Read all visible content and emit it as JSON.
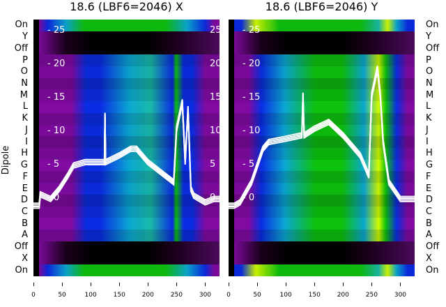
{
  "chart_data": [
    {
      "type": "heatmap",
      "title": "18.6 (LBF6=2046) X",
      "ylabel": "Dipole",
      "row_labels": [
        "On",
        "Y",
        "Off",
        "P",
        "O",
        "N",
        "M",
        "L",
        "K",
        "J",
        "I",
        "H",
        "G",
        "F",
        "E",
        "D",
        "C",
        "B",
        "A",
        "Off",
        "X",
        "On"
      ],
      "xticks": [
        0,
        50,
        100,
        150,
        200,
        250,
        300
      ],
      "xlim": [
        0,
        325
      ],
      "inner_yticks": [
        0,
        5,
        10,
        15,
        20,
        25
      ],
      "line": {
        "x": [
          0,
          10,
          12,
          30,
          45,
          60,
          70,
          90,
          120,
          124,
          125,
          126,
          150,
          170,
          180,
          200,
          230,
          245,
          250,
          255,
          260,
          265,
          270,
          275,
          280,
          300,
          315,
          325
        ],
        "y": [
          -1.5,
          -1.5,
          0.2,
          -0.5,
          1,
          3,
          4.5,
          5,
          5,
          5,
          12,
          5,
          6,
          7,
          7,
          5,
          3,
          2,
          10,
          12,
          14,
          5,
          13,
          1,
          0,
          -1,
          -0.5,
          -0.5
        ]
      }
    },
    {
      "type": "heatmap",
      "title": "18.6 (LBF6=2046) Y",
      "ylabel": "",
      "row_labels": [
        "On",
        "Y",
        "Off",
        "P",
        "O",
        "N",
        "M",
        "L",
        "K",
        "J",
        "I",
        "H",
        "G",
        "F",
        "E",
        "D",
        "C",
        "B",
        "A",
        "Off",
        "X",
        "On"
      ],
      "xticks": [
        0,
        50,
        100,
        150,
        200,
        250,
        300
      ],
      "xlim": [
        0,
        325
      ],
      "inner_yticks": [
        0,
        5,
        10,
        15,
        20,
        25
      ],
      "line": {
        "x": [
          0,
          10,
          20,
          40,
          60,
          70,
          100,
          128,
          130,
          132,
          150,
          175,
          200,
          230,
          245,
          250,
          255,
          260,
          265,
          270,
          280,
          300,
          325
        ],
        "y": [
          -1.5,
          -1.5,
          -1,
          2,
          7,
          8,
          8.5,
          9,
          15,
          9,
          10,
          11,
          9,
          6,
          3,
          15,
          17,
          19,
          15,
          8,
          2,
          -0.5,
          -0.5
        ]
      }
    }
  ],
  "colors": {
    "purple": "#7a0a9a",
    "blue": "#0a2ad8",
    "cyan": "#0aa0c8",
    "teal": "#18b0a0",
    "green": "#0cb80c",
    "lime": "#c8f000",
    "dark": "#1a001a"
  }
}
